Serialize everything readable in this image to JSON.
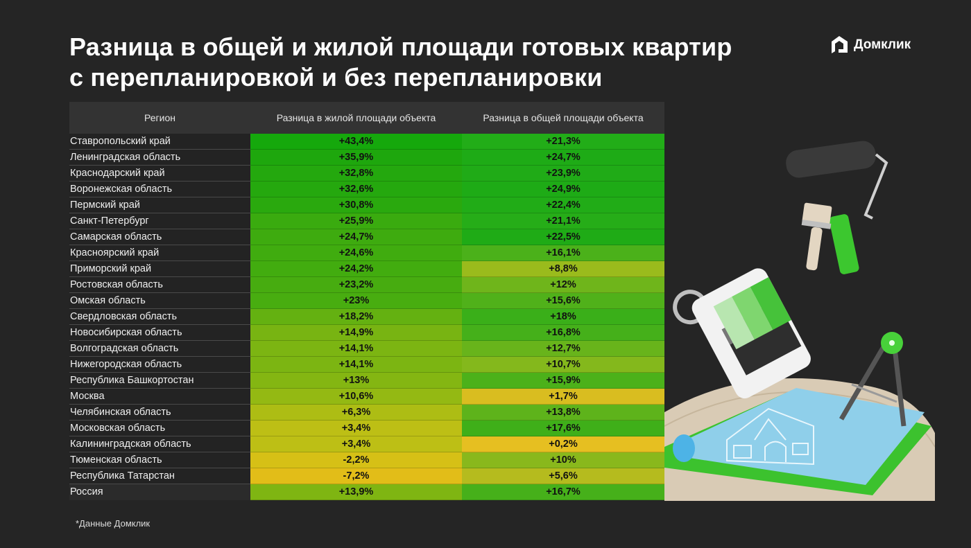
{
  "header": {
    "title_line1": "Разница в общей и жилой площади готовых квартир",
    "title_line2": "с перепланировкой и без перепланировки",
    "logo_text": "Домклик"
  },
  "table": {
    "columns": [
      "Регион",
      "Разница в жилой площади объекта",
      "Разница в общей площади объекта"
    ],
    "rows": [
      {
        "region": "Ставропольский край",
        "living": "+43,4%",
        "total": "+21,3%",
        "living_color": "#15a80c",
        "total_color": "#22ad18"
      },
      {
        "region": "Ленинградская область",
        "living": "+35,9%",
        "total": "+24,7%",
        "living_color": "#1ea70d",
        "total_color": "#1eab16"
      },
      {
        "region": "Краснодарский край",
        "living": "+32,8%",
        "total": "+23,9%",
        "living_color": "#24a80e",
        "total_color": "#20ab17"
      },
      {
        "region": "Воронежская область",
        "living": "+32,6%",
        "total": "+24,9%",
        "living_color": "#25a80e",
        "total_color": "#1eab16"
      },
      {
        "region": "Пермский край",
        "living": "+30,8%",
        "total": "+22,4%",
        "living_color": "#2aa90e",
        "total_color": "#21ac17"
      },
      {
        "region": "Санкт-Петербург",
        "living": "+25,9%",
        "total": "+21,1%",
        "living_color": "#3aab0f",
        "total_color": "#26ad18"
      },
      {
        "region": "Самарская область",
        "living": "+24,7%",
        "total": "+22,5%",
        "living_color": "#3eab0f",
        "total_color": "#1fab16"
      },
      {
        "region": "Красноярский край",
        "living": "+24,6%",
        "total": "+16,1%",
        "living_color": "#40ac0f",
        "total_color": "#4bb11a"
      },
      {
        "region": "Приморский край",
        "living": "+24,2%",
        "total": "+8,8%",
        "living_color": "#42ac0f",
        "total_color": "#9abb1c"
      },
      {
        "region": "Ростовская область",
        "living": "+23,2%",
        "total": "+12%",
        "living_color": "#47ac10",
        "total_color": "#6fb51b"
      },
      {
        "region": "Омская область",
        "living": "+23%",
        "total": "+15,6%",
        "living_color": "#48ad10",
        "total_color": "#50b11a"
      },
      {
        "region": "Свердловская область",
        "living": "+18,2%",
        "total": "+18%",
        "living_color": "#64b111",
        "total_color": "#3aaf19"
      },
      {
        "region": "Новосибирская область",
        "living": "+14,9%",
        "total": "+16,8%",
        "living_color": "#78b412",
        "total_color": "#45b01a"
      },
      {
        "region": "Волгоградская область",
        "living": "+14,1%",
        "total": "+12,7%",
        "living_color": "#7cb512",
        "total_color": "#68b41b"
      },
      {
        "region": "Нижегородская область",
        "living": "+14,1%",
        "total": "+10,7%",
        "living_color": "#7cb512",
        "total_color": "#84b81c"
      },
      {
        "region": "Республика Башкортостан",
        "living": "+13%",
        "total": "+15,9%",
        "living_color": "#84b612",
        "total_color": "#4cb11a"
      },
      {
        "region": "Москва",
        "living": "+10,6%",
        "total": "+1,7%",
        "living_color": "#94b913",
        "total_color": "#d9bd20"
      },
      {
        "region": "Челябинская область",
        "living": "+6,3%",
        "total": "+13,8%",
        "living_color": "#adbd14",
        "total_color": "#5eb31b"
      },
      {
        "region": "Московская область",
        "living": "+3,4%",
        "total": "+17,6%",
        "living_color": "#bdbf15",
        "total_color": "#3faf19"
      },
      {
        "region": "Калининградская область",
        "living": "+3,4%",
        "total": "+0,2%",
        "living_color": "#bdbf15",
        "total_color": "#e6bf21"
      },
      {
        "region": "Тюменская область",
        "living": "-2,2%",
        "total": "+10%",
        "living_color": "#d6c016",
        "total_color": "#89b81c"
      },
      {
        "region": "Республика Татарстан",
        "living": "-7,2%",
        "total": "+5,6%",
        "living_color": "#e2bd18",
        "total_color": "#b5bb1e"
      },
      {
        "region": "Россия",
        "living": "+13,9%",
        "total": "+16,7%",
        "living_color": "#7fb512",
        "total_color": "#46b01a"
      }
    ]
  },
  "footnote": "*Данные Домклик",
  "illustration": {
    "description": "paint-roller, brush, color swatches, blueprint, compass"
  },
  "chart_data": {
    "type": "table",
    "title": "Разница в общей и жилой площади готовых квартир с перепланировкой и без перепланировки",
    "columns": [
      "Регион",
      "Разница в жилой площади объекта",
      "Разница в общей площади объекта"
    ],
    "categories": [
      "Ставропольский край",
      "Ленинградская область",
      "Краснодарский край",
      "Воронежская область",
      "Пермский край",
      "Санкт-Петербург",
      "Самарская область",
      "Красноярский край",
      "Приморский край",
      "Ростовская область",
      "Омская область",
      "Свердловская область",
      "Новосибирская область",
      "Волгоградская область",
      "Нижегородская область",
      "Республика Башкортостан",
      "Москва",
      "Челябинская область",
      "Московская область",
      "Калининградская область",
      "Тюменская область",
      "Республика Татарстан",
      "Россия"
    ],
    "series": [
      {
        "name": "Разница в жилой площади объекта",
        "unit": "%",
        "values": [
          43.4,
          35.9,
          32.8,
          32.6,
          30.8,
          25.9,
          24.7,
          24.6,
          24.2,
          23.2,
          23,
          18.2,
          14.9,
          14.1,
          14.1,
          13,
          10.6,
          6.3,
          3.4,
          3.4,
          -2.2,
          -7.2,
          13.9
        ]
      },
      {
        "name": "Разница в общей площади объекта",
        "unit": "%",
        "values": [
          21.3,
          24.7,
          23.9,
          24.9,
          22.4,
          21.1,
          22.5,
          16.1,
          8.8,
          12,
          15.6,
          18,
          16.8,
          12.7,
          10.7,
          15.9,
          1.7,
          13.8,
          17.6,
          0.2,
          10,
          5.6,
          16.7
        ]
      }
    ],
    "color_scale": {
      "low": "#e2bd18",
      "high": "#15a80c"
    },
    "source": "*Данные Домклик"
  }
}
